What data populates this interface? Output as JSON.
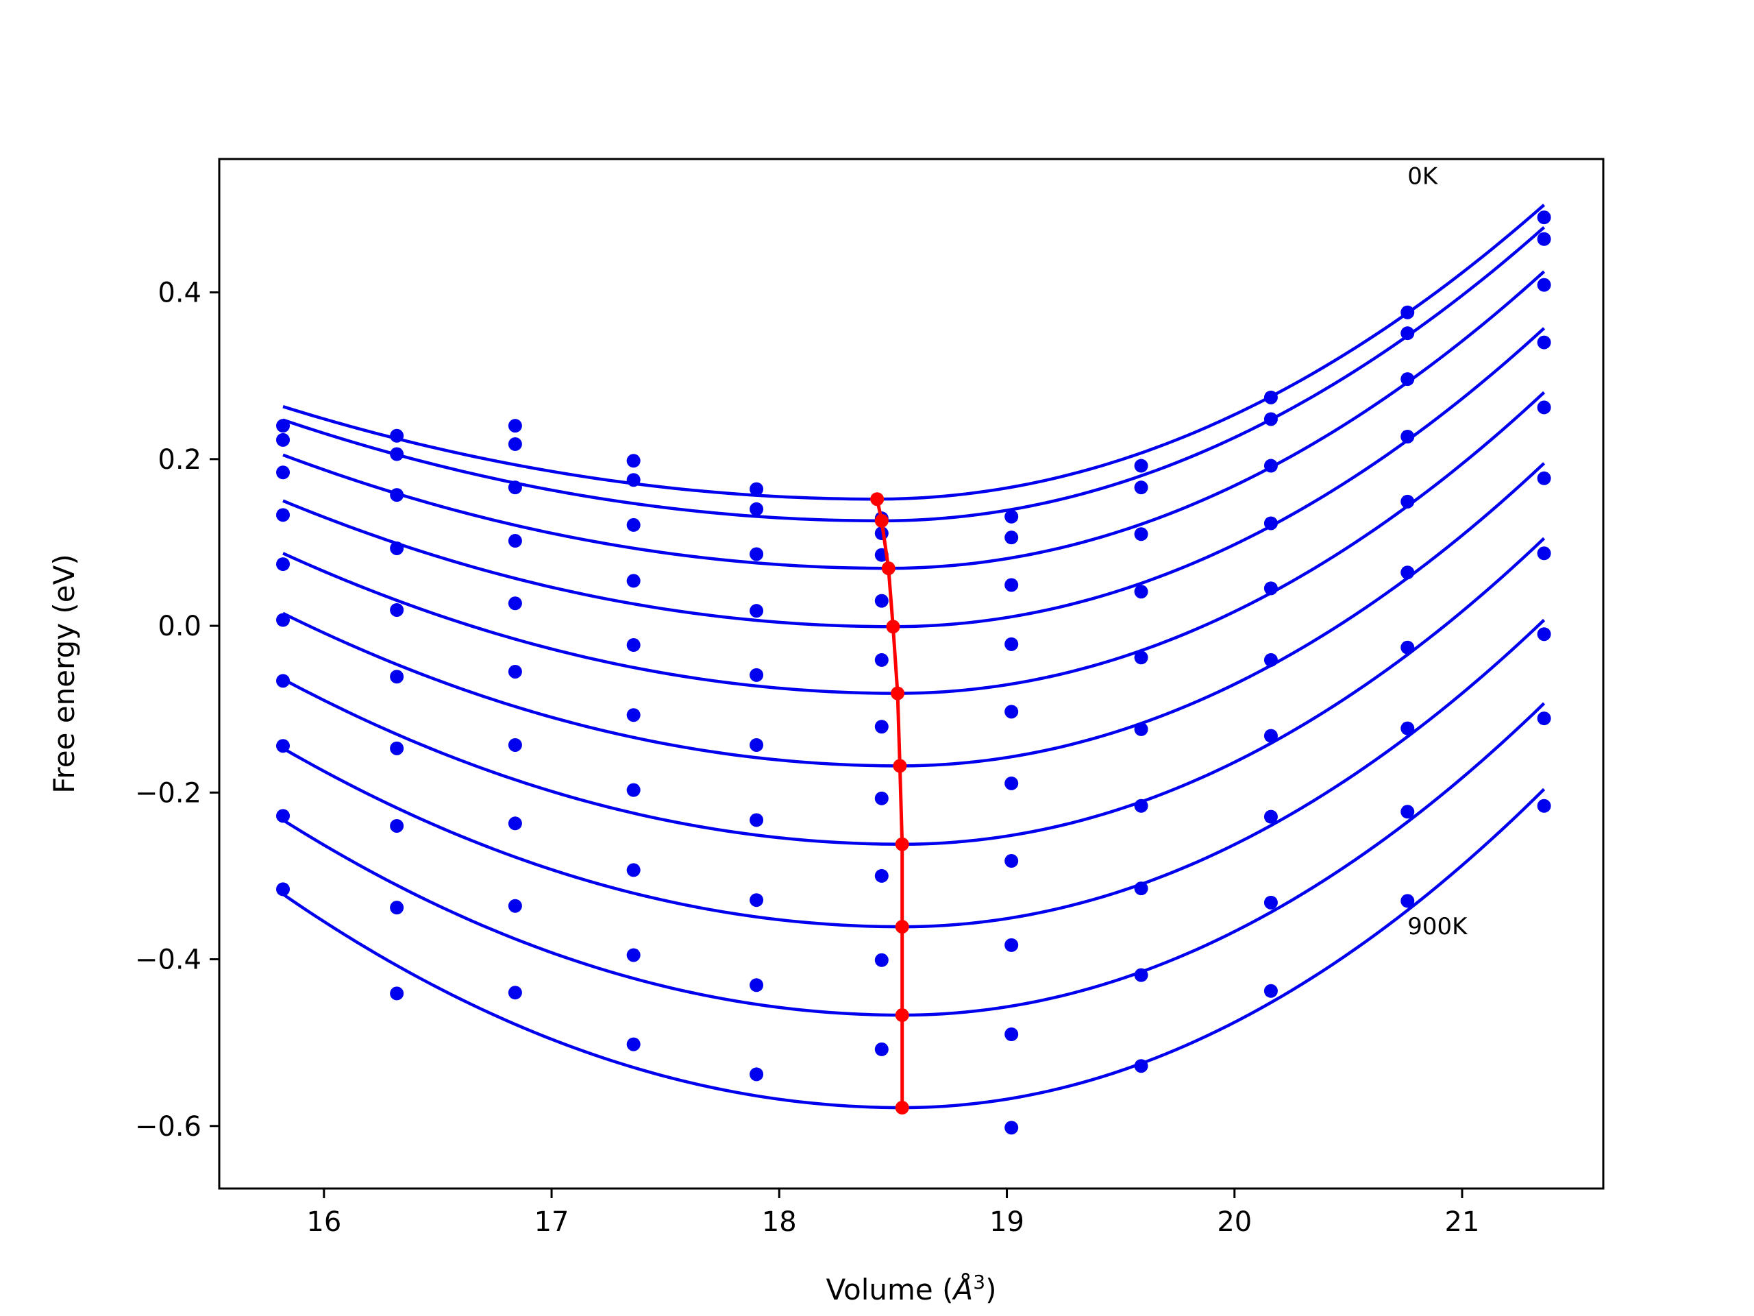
{
  "chart_data": {
    "type": "line",
    "xlabel_main": "Volume (",
    "xlabel_symbol": "Å",
    "xlabel_exp": "3",
    "xlabel_close": ")",
    "ylabel": "Free energy (eV)",
    "xlim": [
      15.54,
      21.62
    ],
    "ylim": [
      -0.675,
      0.56
    ],
    "xticks": [
      16,
      17,
      18,
      19,
      20,
      21
    ],
    "xtick_labels": [
      "16",
      "17",
      "18",
      "19",
      "20",
      "21"
    ],
    "yticks": [
      -0.6,
      -0.4,
      -0.2,
      0.0,
      0.2,
      0.4
    ],
    "ytick_labels": [
      "−0.6",
      "−0.4",
      "−0.2",
      "0.0",
      "0.2",
      "0.4"
    ],
    "grid": false,
    "annotations": [
      {
        "text": "0K",
        "x": 20.76,
        "y": 0.53
      },
      {
        "text": "900K",
        "x": 20.76,
        "y": -0.37
      }
    ],
    "fit_color": "#0000ee",
    "point_color": "#0000ee",
    "min_color": "#ff0000",
    "volumes": [
      15.82,
      16.32,
      16.84,
      17.36,
      17.9,
      18.45,
      19.02,
      19.59,
      20.16,
      20.76,
      21.36
    ],
    "series": [
      {
        "values": [
          0.24,
          0.228,
          0.24,
          0.198,
          0.164,
          0.129,
          0.131,
          0.192,
          0.274,
          0.376,
          0.49
        ],
        "fit_min": [
          18.43,
          0.152
        ],
        "fit_left": 0.263,
        "fit_right": 0.505
      },
      {
        "values": [
          0.223,
          0.206,
          0.218,
          0.175,
          0.14,
          0.111,
          0.106,
          0.166,
          0.248,
          0.351,
          0.464
        ],
        "fit_min": [
          18.45,
          0.126
        ],
        "fit_left": 0.247,
        "fit_right": 0.478
      },
      {
        "values": [
          0.184,
          0.157,
          0.166,
          0.121,
          0.086,
          0.085,
          0.049,
          0.11,
          0.192,
          0.296,
          0.409
        ],
        "fit_min": [
          18.48,
          0.069
        ],
        "fit_left": 0.205,
        "fit_right": 0.425
      },
      {
        "values": [
          0.133,
          0.093,
          0.102,
          0.054,
          0.018,
          0.03,
          -0.022,
          0.041,
          0.123,
          0.227,
          0.34
        ],
        "fit_min": [
          18.5,
          -0.001
        ],
        "fit_left": 0.15,
        "fit_right": 0.357
      },
      {
        "values": [
          0.074,
          0.019,
          0.027,
          -0.023,
          -0.059,
          -0.041,
          -0.103,
          -0.038,
          0.045,
          0.149,
          0.262
        ],
        "fit_min": [
          18.52,
          -0.081
        ],
        "fit_left": 0.087,
        "fit_right": 0.28
      },
      {
        "values": [
          0.007,
          -0.061,
          -0.055,
          -0.107,
          -0.143,
          -0.121,
          -0.189,
          -0.124,
          -0.041,
          0.064,
          0.177
        ],
        "fit_min": [
          18.53,
          -0.168
        ],
        "fit_left": 0.015,
        "fit_right": 0.195
      },
      {
        "values": [
          -0.066,
          -0.147,
          -0.143,
          -0.197,
          -0.233,
          -0.207,
          -0.282,
          -0.216,
          -0.132,
          -0.026,
          0.087
        ],
        "fit_min": [
          18.54,
          -0.262
        ],
        "fit_left": -0.064,
        "fit_right": 0.105
      },
      {
        "values": [
          -0.144,
          -0.24,
          -0.237,
          -0.293,
          -0.329,
          -0.3,
          -0.383,
          -0.315,
          -0.229,
          -0.123,
          -0.01
        ],
        "fit_min": [
          18.54,
          -0.361
        ],
        "fit_left": -0.147,
        "fit_right": 0.007
      },
      {
        "values": [
          -0.228,
          -0.338,
          -0.336,
          -0.395,
          -0.431,
          -0.401,
          -0.49,
          -0.419,
          -0.332,
          -0.223,
          -0.111
        ],
        "fit_min": [
          18.54,
          -0.467
        ],
        "fit_left": -0.233,
        "fit_right": -0.093
      },
      {
        "values": [
          -0.316,
          -0.441,
          -0.44,
          -0.502,
          -0.538,
          -0.508,
          -0.602,
          -0.528,
          -0.438,
          -0.33,
          -0.216
        ],
        "fit_min": [
          18.54,
          -0.578
        ],
        "fit_left": -0.322,
        "fit_right": -0.196
      }
    ]
  }
}
